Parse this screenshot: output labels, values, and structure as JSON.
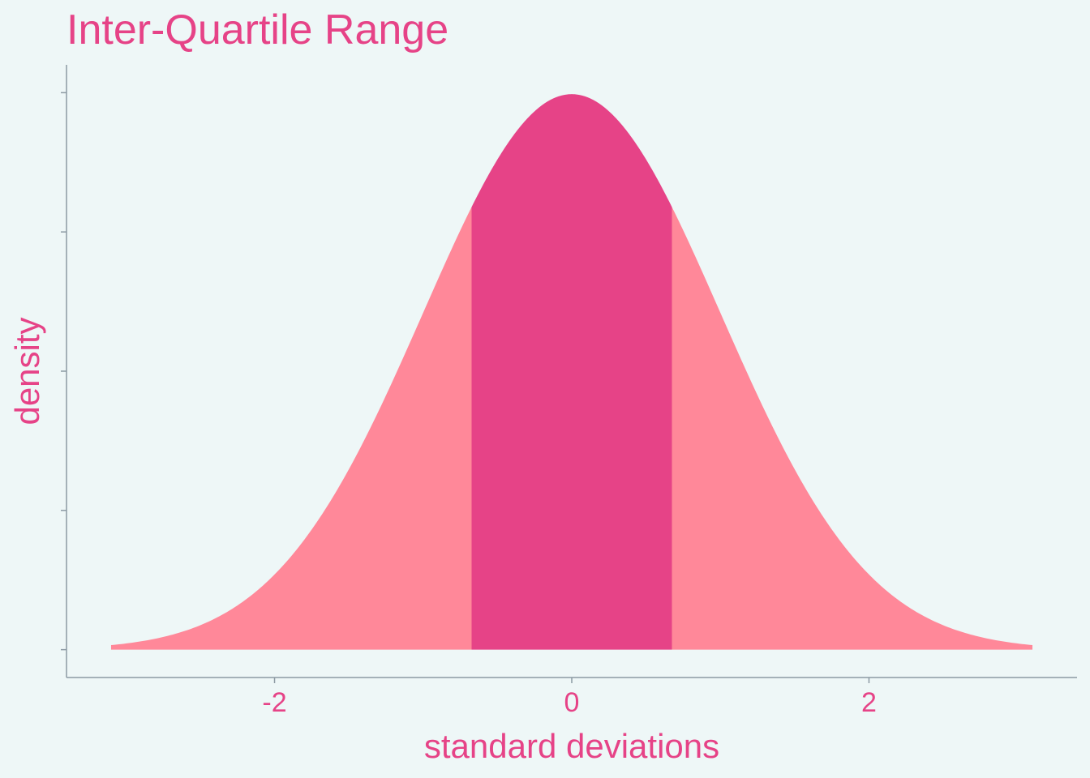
{
  "chart_data": {
    "type": "area",
    "title": "Inter-Quartile Range",
    "xlabel": "standard deviations",
    "ylabel": "density",
    "x_ticks": [
      -2,
      0,
      2
    ],
    "x_tick_labels": [
      "-2",
      "0",
      "2"
    ],
    "y_ticks": [
      0,
      0.1,
      0.2,
      0.3,
      0.4
    ],
    "y_tick_labels_shown": false,
    "xlim": [
      -3.4,
      3.4
    ],
    "ylim": [
      -0.02,
      0.42
    ],
    "distribution": "standard normal",
    "curve_range": [
      -3.1,
      3.1
    ],
    "series": [
      {
        "from": -3.1,
        "to": -0.674,
        "color": "#ff8899"
      },
      {
        "from": -0.674,
        "to": 0.674,
        "color": "#e64387"
      },
      {
        "from": 0.674,
        "to": 3.1,
        "color": "#ff8899"
      }
    ]
  },
  "colors": {
    "background": "#eef7f7",
    "text": "#e64387",
    "axis": "#8c9aa3",
    "tails": "#ff8899",
    "iqr": "#e64387"
  }
}
